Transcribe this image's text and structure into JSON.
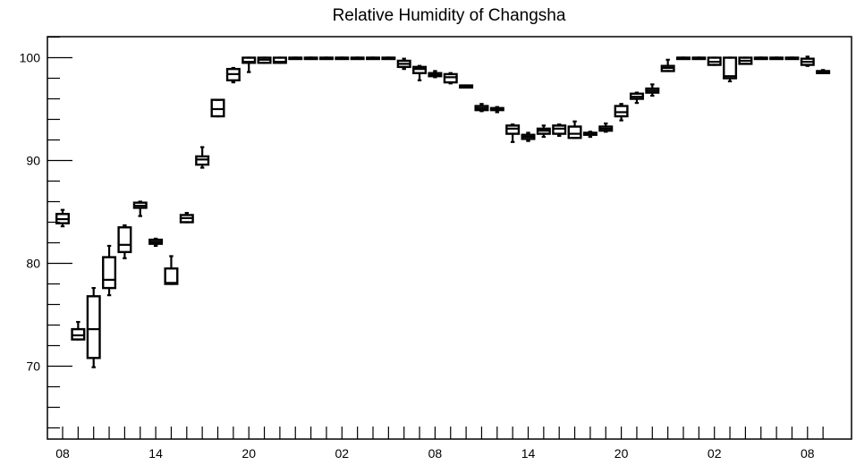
{
  "chart_data": {
    "type": "boxplot",
    "title": "Relative Humidity of Changsha",
    "xlabel": "",
    "ylabel": "",
    "ylim": [
      62.5,
      102.3
    ],
    "xlim": [
      0,
      50
    ],
    "y_ticks": [
      70,
      80,
      90,
      100
    ],
    "y_tick_labels": [
      "70",
      "80",
      "90",
      "100"
    ],
    "x_ticks": [
      0,
      6,
      12,
      18,
      24,
      30,
      36,
      42,
      48
    ],
    "x_tick_labels": [
      "08",
      "14",
      "20",
      "02",
      "08",
      "14",
      "20",
      "02",
      "08"
    ],
    "grid": false,
    "boxes": [
      {
        "x": 0,
        "low": 83.6,
        "q1": 83.9,
        "median": 84.3,
        "q3": 84.8,
        "high": 85.2
      },
      {
        "x": 1,
        "low": 72.6,
        "q1": 72.6,
        "median": 73.0,
        "q3": 73.6,
        "high": 74.3
      },
      {
        "x": 2,
        "low": 69.9,
        "q1": 70.8,
        "median": 73.6,
        "q3": 76.8,
        "high": 77.6
      },
      {
        "x": 3,
        "low": 76.9,
        "q1": 77.6,
        "median": 78.4,
        "q3": 80.6,
        "high": 81.7
      },
      {
        "x": 4,
        "low": 80.5,
        "q1": 81.1,
        "median": 81.8,
        "q3": 83.5,
        "high": 83.7
      },
      {
        "x": 5,
        "low": 84.6,
        "q1": 85.4,
        "median": 85.6,
        "q3": 85.9,
        "high": 86.0
      },
      {
        "x": 6,
        "low": 81.7,
        "q1": 81.9,
        "median": 82.1,
        "q3": 82.3,
        "high": 82.4
      },
      {
        "x": 7,
        "low": 78.0,
        "q1": 78.0,
        "median": 78.1,
        "q3": 79.5,
        "high": 80.7
      },
      {
        "x": 8,
        "low": 84.0,
        "q1": 84.0,
        "median": 84.4,
        "q3": 84.7,
        "high": 84.9
      },
      {
        "x": 9,
        "low": 89.3,
        "q1": 89.6,
        "median": 90.1,
        "q3": 90.4,
        "high": 91.3
      },
      {
        "x": 10,
        "low": 94.3,
        "q1": 94.3,
        "median": 95.0,
        "q3": 95.9,
        "high": 95.9
      },
      {
        "x": 11,
        "low": 97.6,
        "q1": 97.8,
        "median": 98.4,
        "q3": 98.9,
        "high": 99.0
      },
      {
        "x": 12,
        "low": 98.6,
        "q1": 99.5,
        "median": 99.6,
        "q3": 100.0,
        "high": 100.0
      },
      {
        "x": 13,
        "low": 99.5,
        "q1": 99.5,
        "median": 99.8,
        "q3": 100.0,
        "high": 100.0
      },
      {
        "x": 14,
        "low": 99.5,
        "q1": 99.5,
        "median": 99.6,
        "q3": 100.0,
        "high": 100.0
      },
      {
        "x": 15,
        "low": 100.0,
        "q1": 100.0,
        "median": 100.0,
        "q3": 100.0,
        "high": 100.0
      },
      {
        "x": 16,
        "low": 100.0,
        "q1": 100.0,
        "median": 100.0,
        "q3": 100.0,
        "high": 100.0
      },
      {
        "x": 17,
        "low": 100.0,
        "q1": 100.0,
        "median": 100.0,
        "q3": 100.0,
        "high": 100.0
      },
      {
        "x": 18,
        "low": 100.0,
        "q1": 100.0,
        "median": 100.0,
        "q3": 100.0,
        "high": 100.0
      },
      {
        "x": 19,
        "low": 100.0,
        "q1": 100.0,
        "median": 100.0,
        "q3": 100.0,
        "high": 100.0
      },
      {
        "x": 20,
        "low": 100.0,
        "q1": 100.0,
        "median": 100.0,
        "q3": 100.0,
        "high": 100.0
      },
      {
        "x": 21,
        "low": 100.0,
        "q1": 100.0,
        "median": 100.0,
        "q3": 100.0,
        "high": 100.0
      },
      {
        "x": 22,
        "low": 98.9,
        "q1": 99.1,
        "median": 99.4,
        "q3": 99.7,
        "high": 99.9
      },
      {
        "x": 23,
        "low": 97.8,
        "q1": 98.5,
        "median": 98.9,
        "q3": 99.1,
        "high": 99.2
      },
      {
        "x": 24,
        "low": 98.1,
        "q1": 98.2,
        "median": 98.4,
        "q3": 98.5,
        "high": 98.7
      },
      {
        "x": 25,
        "low": 97.5,
        "q1": 97.6,
        "median": 98.1,
        "q3": 98.4,
        "high": 98.5
      },
      {
        "x": 26,
        "low": 97.1,
        "q1": 97.1,
        "median": 97.2,
        "q3": 97.3,
        "high": 97.3
      },
      {
        "x": 27,
        "low": 94.8,
        "q1": 94.9,
        "median": 95.1,
        "q3": 95.3,
        "high": 95.5
      },
      {
        "x": 28,
        "low": 94.7,
        "q1": 94.9,
        "median": 95.0,
        "q3": 95.1,
        "high": 95.2
      },
      {
        "x": 29,
        "low": 91.8,
        "q1": 92.6,
        "median": 93.1,
        "q3": 93.4,
        "high": 93.5
      },
      {
        "x": 30,
        "low": 91.9,
        "q1": 92.1,
        "median": 92.3,
        "q3": 92.5,
        "high": 92.7
      },
      {
        "x": 31,
        "low": 92.3,
        "q1": 92.6,
        "median": 92.9,
        "q3": 93.1,
        "high": 93.4
      },
      {
        "x": 32,
        "low": 92.4,
        "q1": 92.6,
        "median": 93.1,
        "q3": 93.4,
        "high": 93.5
      },
      {
        "x": 33,
        "low": 92.2,
        "q1": 92.2,
        "median": 92.6,
        "q3": 93.3,
        "high": 93.8
      },
      {
        "x": 34,
        "low": 92.3,
        "q1": 92.5,
        "median": 92.6,
        "q3": 92.7,
        "high": 92.8
      },
      {
        "x": 35,
        "low": 92.8,
        "q1": 92.9,
        "median": 93.1,
        "q3": 93.3,
        "high": 93.6
      },
      {
        "x": 36,
        "low": 93.9,
        "q1": 94.3,
        "median": 94.7,
        "q3": 95.3,
        "high": 95.5
      },
      {
        "x": 37,
        "low": 95.6,
        "q1": 96.0,
        "median": 96.2,
        "q3": 96.5,
        "high": 96.6
      },
      {
        "x": 38,
        "low": 96.3,
        "q1": 96.6,
        "median": 96.8,
        "q3": 97.0,
        "high": 97.4
      },
      {
        "x": 39,
        "low": 98.7,
        "q1": 98.7,
        "median": 99.0,
        "q3": 99.2,
        "high": 99.8
      },
      {
        "x": 40,
        "low": 100.0,
        "q1": 100.0,
        "median": 100.0,
        "q3": 100.0,
        "high": 100.0
      },
      {
        "x": 41,
        "low": 100.0,
        "q1": 100.0,
        "median": 100.0,
        "q3": 100.0,
        "high": 100.0
      },
      {
        "x": 42,
        "low": 99.3,
        "q1": 99.3,
        "median": 99.6,
        "q3": 100.0,
        "high": 100.0
      },
      {
        "x": 43,
        "low": 97.7,
        "q1": 98.0,
        "median": 98.2,
        "q3": 100.0,
        "high": 100.0
      },
      {
        "x": 44,
        "low": 99.4,
        "q1": 99.4,
        "median": 99.7,
        "q3": 100.0,
        "high": 100.0
      },
      {
        "x": 45,
        "low": 100.0,
        "q1": 100.0,
        "median": 100.0,
        "q3": 100.0,
        "high": 100.0
      },
      {
        "x": 46,
        "low": 100.0,
        "q1": 100.0,
        "median": 100.0,
        "q3": 100.0,
        "high": 100.0
      },
      {
        "x": 47,
        "low": 100.0,
        "q1": 100.0,
        "median": 100.0,
        "q3": 100.0,
        "high": 100.0
      },
      {
        "x": 48,
        "low": 99.2,
        "q1": 99.3,
        "median": 99.6,
        "q3": 99.9,
        "high": 100.1
      },
      {
        "x": 49,
        "low": 98.5,
        "q1": 98.5,
        "median": 98.6,
        "q3": 98.7,
        "high": 98.8
      }
    ]
  }
}
